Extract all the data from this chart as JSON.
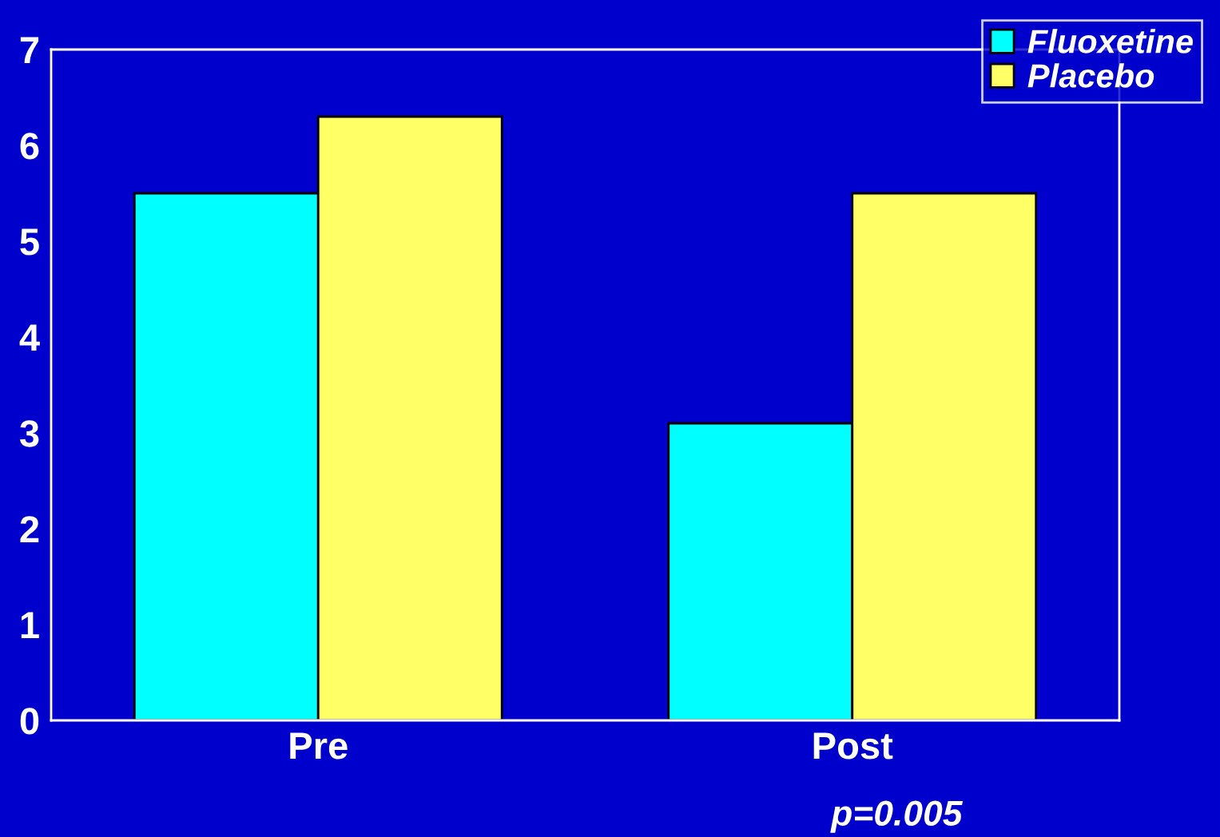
{
  "chart_data": {
    "type": "bar",
    "categories": [
      "Pre",
      "Post"
    ],
    "series": [
      {
        "name": "Fluoxetine",
        "color": "#00ffff",
        "values": [
          5.5,
          3.1
        ]
      },
      {
        "name": "Placebo",
        "color": "#ffff66",
        "values": [
          6.3,
          5.5
        ]
      }
    ],
    "ylim": [
      0,
      7
    ],
    "yticks": [
      0,
      1,
      2,
      3,
      4,
      5,
      6,
      7
    ],
    "grid": false,
    "legend": "top right",
    "annotations": [
      "p=0.005"
    ]
  }
}
